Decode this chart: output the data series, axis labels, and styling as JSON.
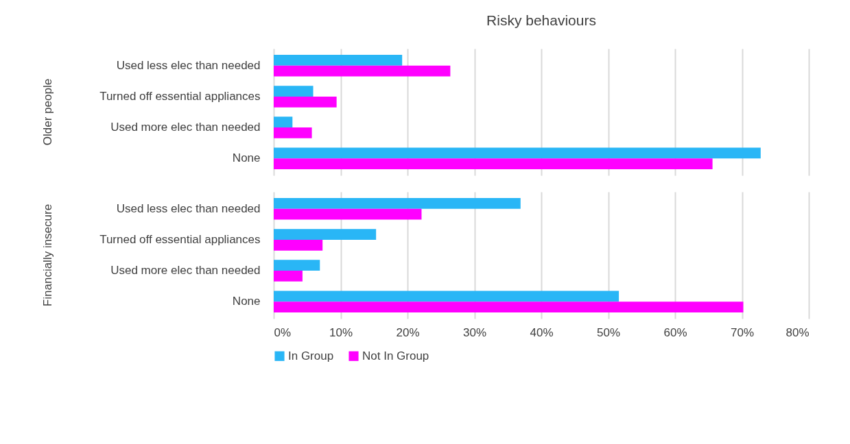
{
  "chart_data": [
    {
      "type": "bar",
      "orientation": "horizontal",
      "title": "Risky behaviours",
      "ylabel": "Older people",
      "categories": [
        "Used less elec than needed",
        "Turned off essential appliances",
        "Used more elec than needed",
        "None"
      ],
      "series": [
        {
          "name": "In Group",
          "color": "#29b6f6",
          "values": [
            19.2,
            5.9,
            2.8,
            72.8
          ]
        },
        {
          "name": "Not In Group",
          "color": "#ff00ff",
          "values": [
            26.4,
            9.4,
            5.7,
            65.6
          ]
        }
      ],
      "xlim": [
        0,
        80
      ],
      "xticks": [
        0,
        10,
        20,
        30,
        40,
        50,
        60,
        70,
        80
      ],
      "grid": "x",
      "tick_labels": "y",
      "legend": "bottom"
    },
    {
      "type": "bar",
      "orientation": "horizontal",
      "ylabel": "Financially insecure",
      "categories": [
        "Used less elec than needed",
        "Turned off essential appliances",
        "Used more elec than needed",
        "None"
      ],
      "series": [
        {
          "name": "In Group",
          "color": "#29b6f6",
          "values": [
            36.9,
            15.3,
            6.9,
            51.6
          ]
        },
        {
          "name": "Not In Group",
          "color": "#ff00ff",
          "values": [
            22.1,
            7.3,
            4.3,
            70.2
          ]
        }
      ],
      "xlim": [
        0,
        80
      ],
      "xticks": [
        {
          "value": 0,
          "label": "0%"
        },
        {
          "value": 10,
          "label": "10%"
        },
        {
          "value": 20,
          "label": "20%"
        },
        {
          "value": 30,
          "label": "30%"
        },
        {
          "value": 40,
          "label": "40%"
        },
        {
          "value": 50,
          "label": "50%"
        },
        {
          "value": 60,
          "label": "60%"
        },
        {
          "value": 70,
          "label": "70%"
        },
        {
          "value": 80,
          "label": "80%"
        }
      ],
      "grid": "x",
      "legend": "bottom"
    }
  ]
}
